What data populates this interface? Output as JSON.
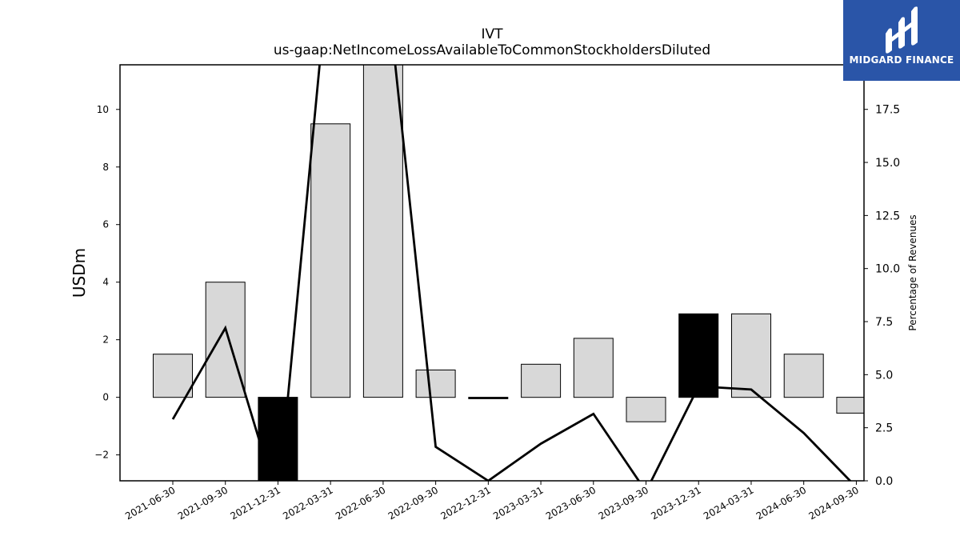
{
  "chart_data": {
    "type": "bar",
    "title": "IVT",
    "subtitle": "us-gaap:NetIncomeLossAvailableToCommonStockholdersDiluted",
    "ylabel": "USDm",
    "y2label": "Percentage of Revenues",
    "categories": [
      "2021-06-30",
      "2021-09-30",
      "2021-12-31",
      "2022-03-31",
      "2022-06-30",
      "2022-09-30",
      "2022-12-31",
      "2023-03-31",
      "2023-06-30",
      "2023-09-30",
      "2023-12-31",
      "2024-03-31",
      "2024-06-30",
      "2024-09-30"
    ],
    "series": [
      {
        "type": "bar",
        "axis": "left",
        "values": [
          1.5,
          4.0,
          -3.3,
          9.5,
          12.0,
          0.95,
          -0.05,
          1.15,
          2.05,
          -0.85,
          2.9,
          2.9,
          1.5,
          -0.55
        ],
        "highlight": [
          false,
          false,
          true,
          false,
          false,
          false,
          true,
          false,
          false,
          false,
          true,
          false,
          false,
          false
        ],
        "color": "#d8d8d8",
        "highlight_color": "#000000"
      },
      {
        "type": "line",
        "axis": "right",
        "values": [
          2.9,
          7.2,
          -1.0,
          25.0,
          25.0,
          1.6,
          0.0,
          1.75,
          3.15,
          -0.5,
          4.45,
          4.3,
          2.25,
          -0.3
        ],
        "color": "#000000"
      }
    ],
    "ylim": [
      -2.9,
      11.55
    ],
    "y2lim": [
      0.0,
      19.6
    ],
    "yticks": [
      "−2",
      "0",
      "2",
      "4",
      "6",
      "8",
      "10"
    ],
    "y2ticks": [
      "0.0",
      "2.5",
      "5.0",
      "7.5",
      "10.0",
      "12.5",
      "15.0",
      "17.5"
    ],
    "grid": false
  },
  "branding": {
    "name": "MIDGARD FINANCE",
    "color": "#2a55a8"
  }
}
